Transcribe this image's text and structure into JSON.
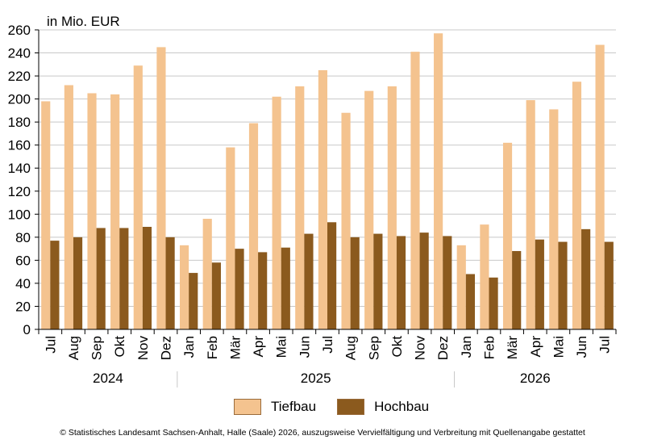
{
  "chart_data": {
    "type": "bar",
    "unit_label": "in Mio. EUR",
    "categories": [
      "Jul",
      "Aug",
      "Sep",
      "Okt",
      "Nov",
      "Dez",
      "Jan",
      "Feb",
      "Mär",
      "Apr",
      "Mai",
      "Jun",
      "Jul",
      "Aug",
      "Sep",
      "Okt",
      "Nov",
      "Dez",
      "Jan",
      "Feb",
      "Mär",
      "Apr",
      "Mai",
      "Jun",
      "Jul"
    ],
    "years": [
      {
        "label": "2024",
        "start": 0,
        "end": 5
      },
      {
        "label": "2025",
        "start": 6,
        "end": 17
      },
      {
        "label": "2026",
        "start": 18,
        "end": 24
      }
    ],
    "series": [
      {
        "name": "Tiefbau",
        "color": "#f4c38f",
        "values": [
          198,
          212,
          205,
          204,
          229,
          245,
          73,
          96,
          158,
          179,
          202,
          211,
          225,
          188,
          207,
          211,
          241,
          257,
          73,
          91,
          162,
          199,
          191,
          215,
          247
        ]
      },
      {
        "name": "Hochbau",
        "color": "#8b5a1e",
        "values": [
          77,
          80,
          88,
          88,
          89,
          80,
          49,
          58,
          70,
          67,
          71,
          83,
          93,
          80,
          83,
          81,
          84,
          81,
          48,
          45,
          68,
          78,
          76,
          87,
          76
        ]
      }
    ],
    "ylim": [
      0,
      260
    ],
    "yticks": [
      0,
      20,
      40,
      60,
      80,
      100,
      120,
      140,
      160,
      180,
      200,
      220,
      240,
      260
    ],
    "grid": true,
    "legend_position": "bottom"
  },
  "legend": {
    "items": [
      "Tiefbau",
      "Hochbau"
    ]
  },
  "footer": {
    "text": "© Statistisches Landesamt Sachsen-Anhalt, Halle (Saale) 2026, auszugsweise Vervielfältigung und Verbreitung mit Quellenangabe gestattet"
  }
}
